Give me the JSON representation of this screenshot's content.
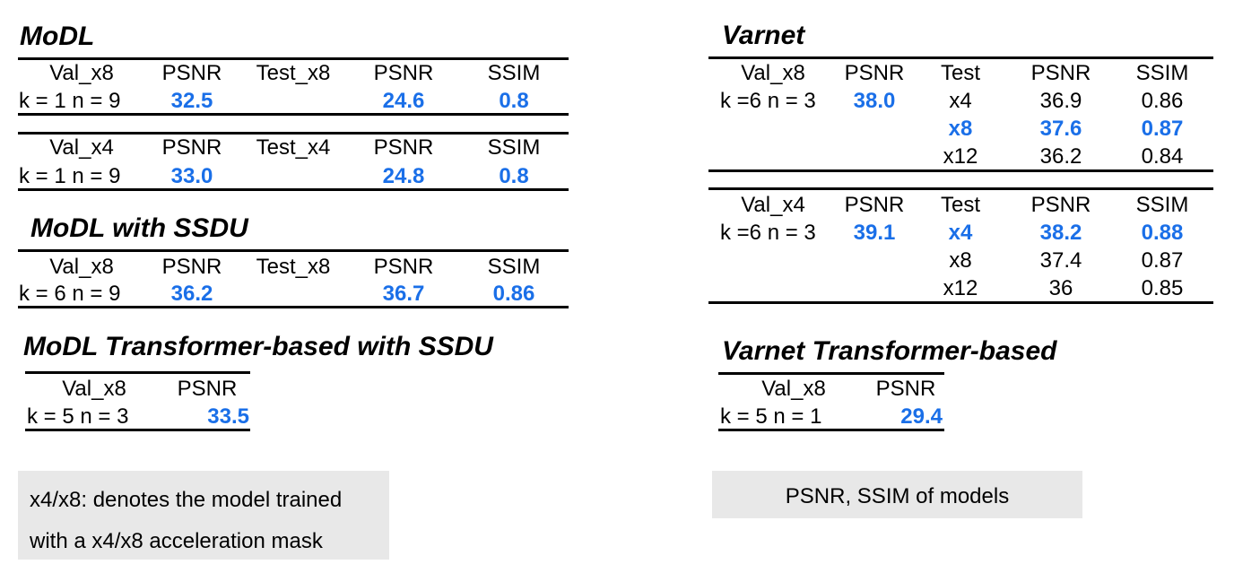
{
  "titles": {
    "modl": "MoDL",
    "modl_ssdu": "MoDL with SSDU",
    "modl_tf": "MoDL Transformer-based with SSDU",
    "varnet": "Varnet",
    "varnet_tf": "Varnet Transformer-based"
  },
  "modl_x8": {
    "headers": [
      "Val_x8",
      "PSNR",
      "Test_x8",
      "PSNR",
      "SSIM"
    ],
    "row": [
      "k = 1  n = 9",
      "32.5",
      "",
      "24.6",
      "0.8"
    ]
  },
  "modl_x4": {
    "headers": [
      "Val_x4",
      "PSNR",
      "Test_x4",
      "PSNR",
      "SSIM"
    ],
    "row": [
      "k = 1  n = 9",
      "33.0",
      "",
      "24.8",
      "0.8"
    ]
  },
  "modl_ssdu": {
    "headers": [
      "Val_x8",
      "PSNR",
      "Test_x8",
      "PSNR",
      "SSIM"
    ],
    "row": [
      "k = 6  n = 9",
      "36.2",
      "",
      "36.7",
      "0.86"
    ]
  },
  "modl_tf": {
    "headers": [
      "Val_x8",
      "PSNR"
    ],
    "row": [
      "k = 5   n = 3",
      "33.5"
    ]
  },
  "varnet_x8": {
    "headers": [
      "Val_x8",
      "PSNR",
      "Test",
      "PSNR",
      "SSIM"
    ],
    "rows": [
      [
        "k =6  n = 3",
        "38.0",
        "x4",
        "36.9",
        "0.86"
      ],
      [
        "",
        "",
        "x8",
        "37.6",
        "0.87"
      ],
      [
        "",
        "",
        "x12",
        "36.2",
        "0.84"
      ]
    ]
  },
  "varnet_x4": {
    "headers": [
      "Val_x4",
      "PSNR",
      "Test",
      "PSNR",
      "SSIM"
    ],
    "rows": [
      [
        "k =6  n = 3",
        "39.1",
        "x4",
        "38.2",
        "0.88"
      ],
      [
        "",
        "",
        "x8",
        "37.4",
        "0.87"
      ],
      [
        "",
        "",
        "x12",
        "36",
        "0.85"
      ]
    ]
  },
  "varnet_tf": {
    "headers": [
      "Val_x8",
      "PSNR"
    ],
    "row": [
      "k = 5    n = 1",
      "29.4"
    ]
  },
  "notes": {
    "left": [
      "x4/x8: denotes the model trained",
      "with a x4/x8 acceleration mask"
    ],
    "right": "PSNR, SSIM of models"
  },
  "colors": {
    "highlight": "#1a6fe8",
    "note_bg": "#e8e8e8"
  }
}
